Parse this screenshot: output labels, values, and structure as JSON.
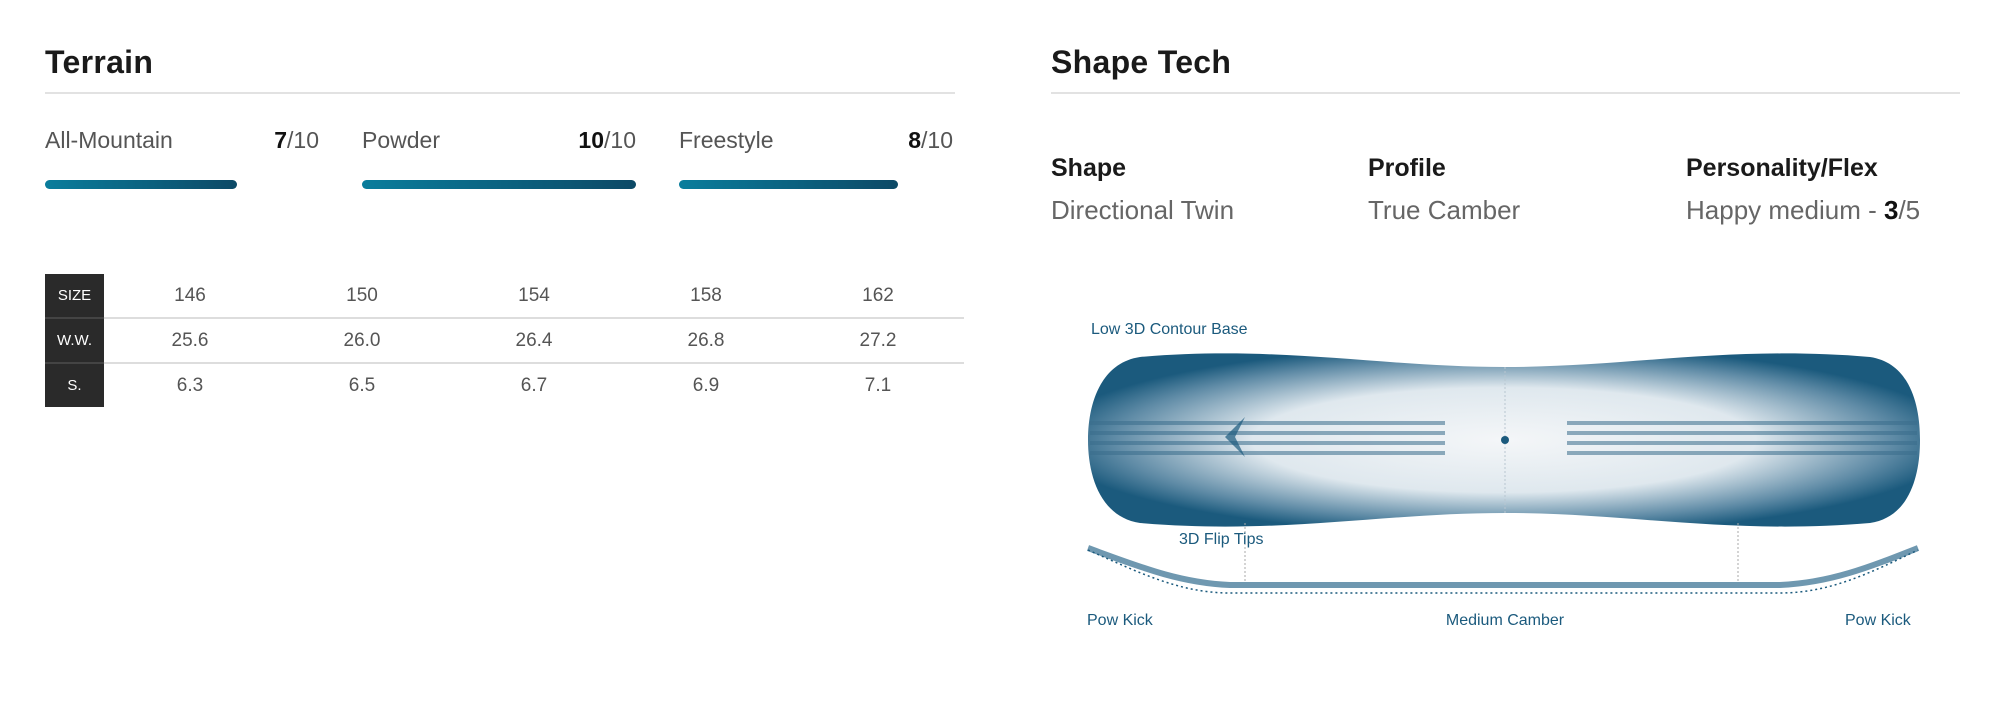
{
  "terrain": {
    "title": "Terrain",
    "ratings": [
      {
        "label": "All-Mountain",
        "score": "7",
        "max": "/10",
        "value": 7
      },
      {
        "label": "Powder",
        "score": "10",
        "max": "/10",
        "value": 10
      },
      {
        "label": "Freestyle",
        "score": "8",
        "max": "/10",
        "value": 8
      }
    ],
    "bar_colors": [
      "#0a7d9c",
      "#0c4966"
    ]
  },
  "specs": {
    "rows": [
      {
        "label": "SIZE",
        "values": [
          "146",
          "150",
          "154",
          "158",
          "162"
        ]
      },
      {
        "label": "W.W.",
        "values": [
          "25.6",
          "26.0",
          "26.4",
          "26.8",
          "27.2"
        ]
      },
      {
        "label": "S.",
        "values": [
          "6.3",
          "6.5",
          "6.7",
          "6.9",
          "7.1"
        ]
      }
    ]
  },
  "shape_tech": {
    "title": "Shape Tech",
    "shape": {
      "label": "Shape",
      "value": "Directional Twin"
    },
    "profile": {
      "label": "Profile",
      "value": "True Camber"
    },
    "flex": {
      "label": "Personality/Flex",
      "value_prefix": "Happy medium - ",
      "score": "3",
      "max": "/5"
    },
    "diagram": {
      "base_label": "Low 3D Contour Base",
      "tips_label": "3D Flip Tips",
      "left_kick": "Pow Kick",
      "camber": "Medium Camber",
      "right_kick": "Pow Kick",
      "color": "#1b5a7d"
    }
  }
}
